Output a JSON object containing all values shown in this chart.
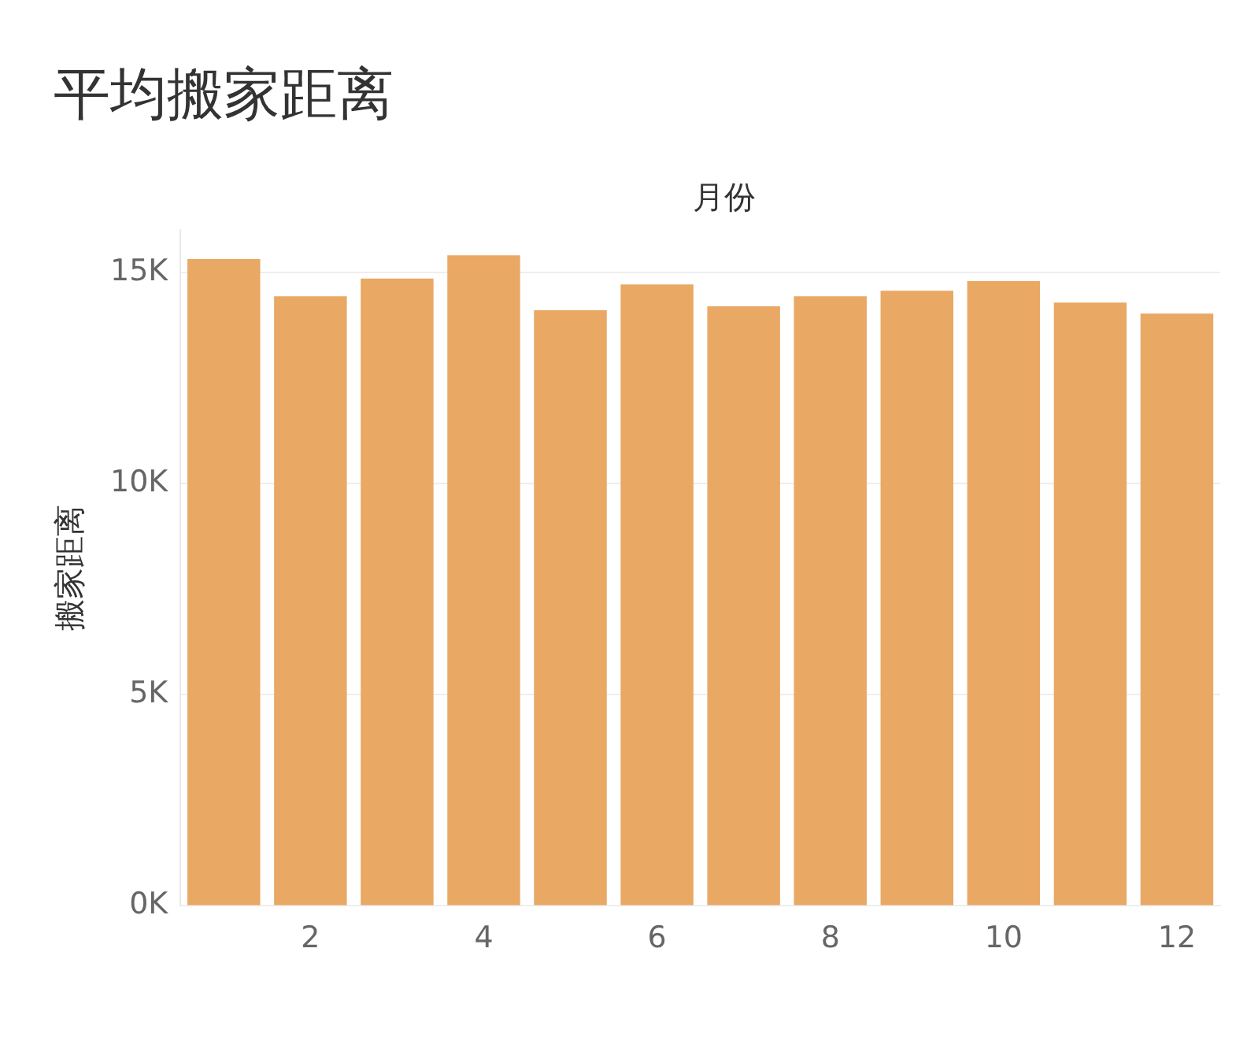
{
  "chart_data": {
    "type": "bar",
    "title": "平均搬家距离",
    "xlabel": "月份",
    "ylabel": "搬家距离",
    "categories": [
      null,
      "2",
      null,
      "4",
      null,
      "6",
      null,
      "8",
      null,
      "10",
      null,
      "12"
    ],
    "values": [
      15310,
      14430,
      14850,
      15400,
      14100,
      14710,
      14190,
      14430,
      14560,
      14790,
      14280,
      14020
    ],
    "color": "#e9a864",
    "ylim": [
      0,
      16000
    ],
    "yticks": [
      {
        "value": 0,
        "label": "0K"
      },
      {
        "value": 5000,
        "label": "5K"
      },
      {
        "value": 10000,
        "label": "10K"
      },
      {
        "value": 15000,
        "label": "15K"
      }
    ],
    "grid": "y"
  }
}
